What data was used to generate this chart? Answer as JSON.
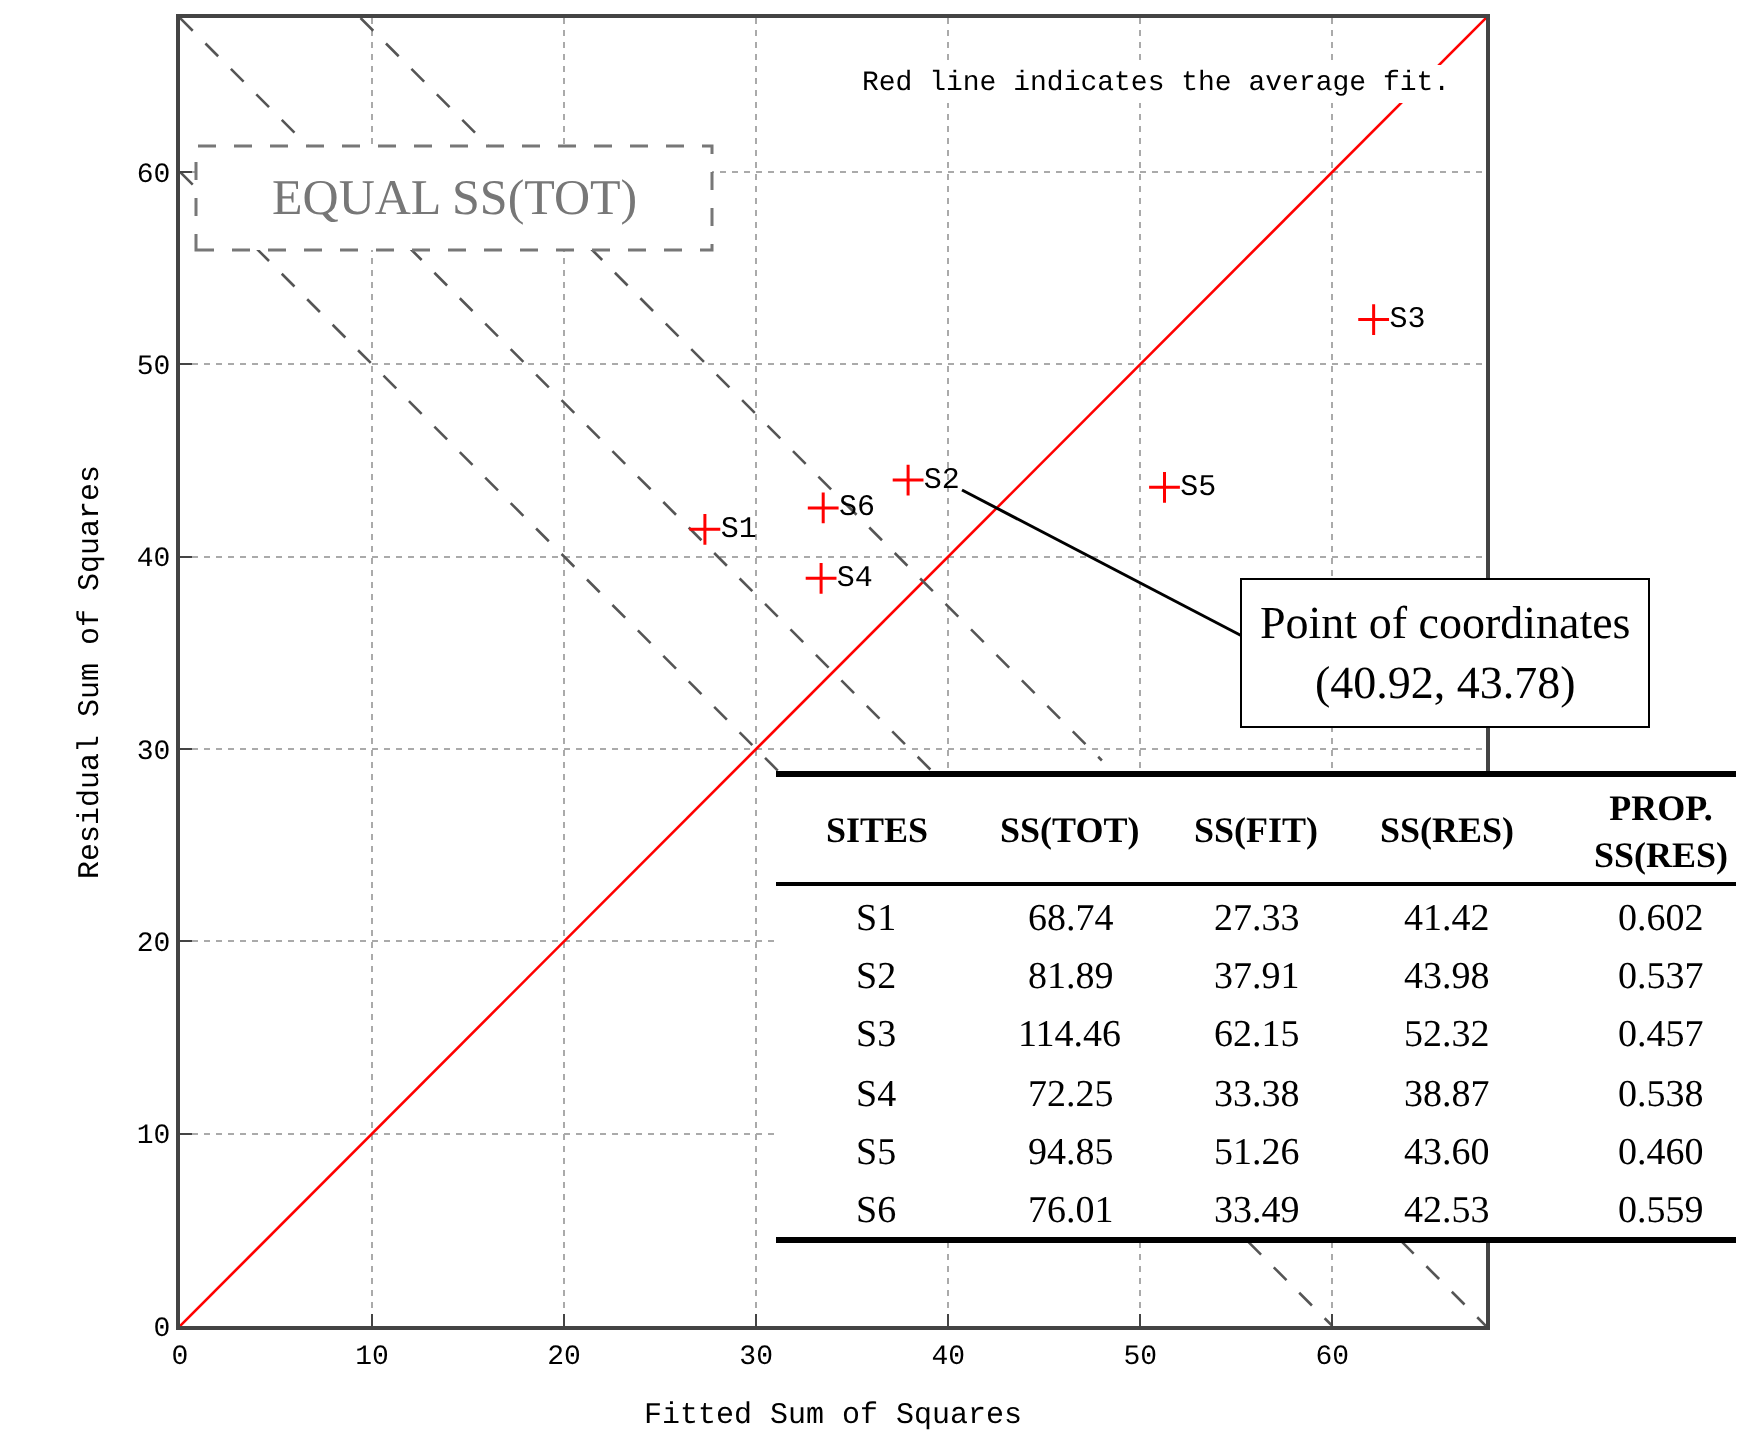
{
  "chart_data": {
    "type": "scatter",
    "xlabel": "Fitted Sum of Squares",
    "ylabel": "Residual Sum of Squares",
    "xlim": [
      0,
      68
    ],
    "ylim": [
      0,
      68
    ],
    "xticks": [
      0,
      10,
      20,
      30,
      40,
      50,
      60
    ],
    "yticks": [
      0,
      10,
      20,
      30,
      40,
      50,
      60
    ],
    "grid": true,
    "legend": false,
    "marker": "cross",
    "series": [
      {
        "type": "line",
        "color": "#ff0000",
        "line_style": "solid",
        "marker": "none",
        "x": [
          0,
          68
        ],
        "values": [
          0,
          68
        ]
      },
      {
        "type": "line",
        "color": "#555555",
        "line_style": "dashed",
        "marker": "none",
        "x": [
          0,
          60
        ],
        "values": [
          60,
          0
        ]
      },
      {
        "type": "line",
        "color": "#555555",
        "line_style": "dashed",
        "marker": "none",
        "x": [
          0,
          68
        ],
        "values": [
          68,
          0
        ]
      },
      {
        "type": "line",
        "color": "#555555",
        "line_style": "dashed",
        "marker": "none",
        "x": [
          9.4,
          48
        ],
        "values": [
          68,
          29.4
        ]
      },
      {
        "name": "S1",
        "color": "#ff0000",
        "x": [
          27.33
        ],
        "values": [
          41.42
        ]
      },
      {
        "name": "S2",
        "color": "#ff0000",
        "x": [
          37.91
        ],
        "values": [
          43.98
        ]
      },
      {
        "name": "S3",
        "color": "#ff0000",
        "x": [
          62.15
        ],
        "values": [
          52.32
        ]
      },
      {
        "name": "S4",
        "color": "#ff0000",
        "x": [
          33.38
        ],
        "values": [
          38.87
        ]
      },
      {
        "name": "S5",
        "color": "#ff0000",
        "x": [
          51.26
        ],
        "values": [
          43.6
        ]
      },
      {
        "name": "S6",
        "color": "#ff0000",
        "x": [
          33.49
        ],
        "values": [
          42.53
        ]
      }
    ],
    "annotations": [
      "Red line indicates the average fit.",
      "EQUAL SS(TOT)",
      "Point of coordinates\n(40.92, 43.78)",
      "SITES",
      "SS(TOT)",
      "SS(FIT)",
      "SS(RES)",
      "PROP.\nSS(RES)",
      "S1",
      "68.74",
      "27.33",
      "41.42",
      "0.602",
      "S2",
      "81.89",
      "37.91",
      "43.98",
      "0.537",
      "S3",
      "114.46",
      "62.15",
      "52.32",
      "0.457",
      "S4",
      "72.25",
      "33.38",
      "38.87",
      "0.538",
      "S5",
      "94.85",
      "51.26",
      "43.60",
      "0.460",
      "S6",
      "76.01",
      "33.49",
      "42.53",
      "0.559"
    ]
  }
}
